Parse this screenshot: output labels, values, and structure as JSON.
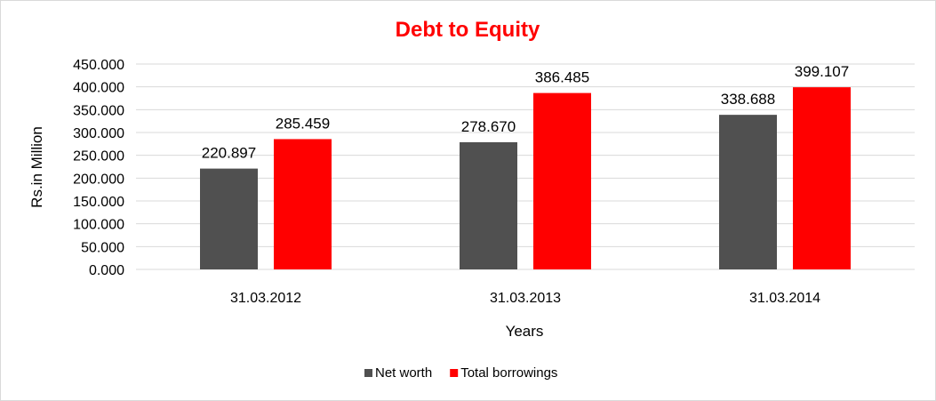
{
  "chart_data": {
    "type": "bar",
    "title": "Debt to Equity",
    "xlabel": "Years",
    "ylabel": "Rs.in Million",
    "categories": [
      "31.03.2012",
      "31.03.2013",
      "31.03.2014"
    ],
    "series": [
      {
        "name": "Net worth",
        "color": "#505050",
        "values": [
          220.897,
          278.67,
          338.688
        ]
      },
      {
        "name": "Total borrowings",
        "color": "#ff0000",
        "values": [
          285.459,
          386.485,
          399.107
        ]
      }
    ],
    "data_labels": [
      [
        "220.897",
        "278.670",
        "338.688"
      ],
      [
        "285.459",
        "386.485",
        "399.107"
      ]
    ],
    "ylim": [
      0,
      450
    ],
    "yticks": [
      "0.000",
      "50.000",
      "100.000",
      "150.000",
      "200.000",
      "250.000",
      "300.000",
      "350.000",
      "400.000",
      "450.000"
    ],
    "ytick_values": [
      0,
      50,
      100,
      150,
      200,
      250,
      300,
      350,
      400,
      450
    ],
    "grid": true,
    "legend_position": "bottom",
    "title_color": "#ff0000"
  }
}
